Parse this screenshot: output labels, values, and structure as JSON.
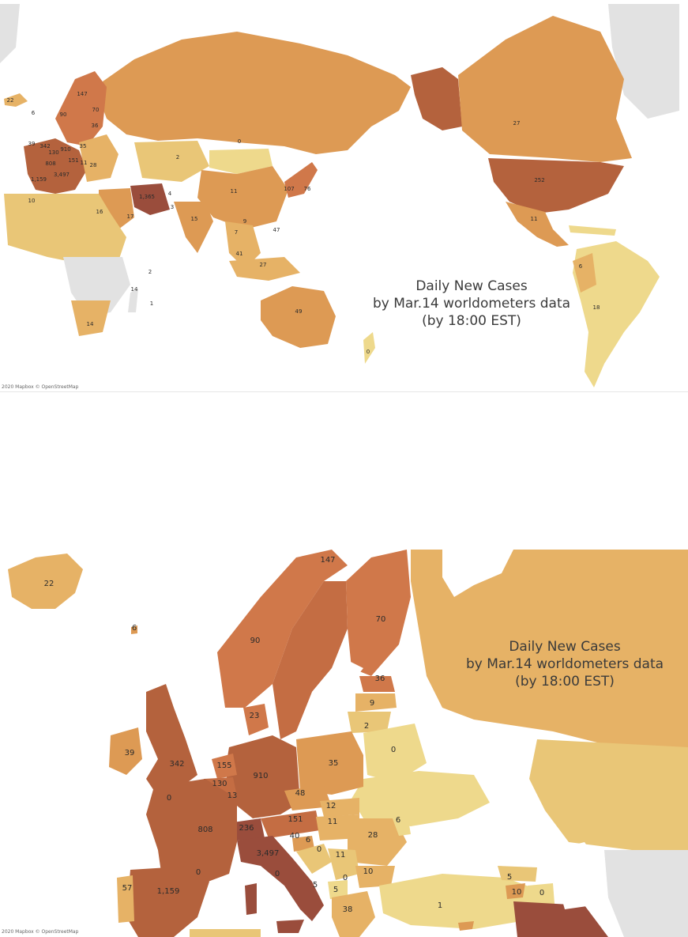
{
  "world_map": {
    "title_lines": [
      "Daily New Cases",
      "by Mar.14 worldometers data",
      "(by 18:00 EST)"
    ],
    "attribution": "2020 Mapbox © OpenStreetMap"
  },
  "europe_map": {
    "title_lines": [
      "Daily New Cases",
      "by Mar.14 worldometers data",
      "(by 18:00 EST)"
    ],
    "attribution": "2020 Mapbox © OpenStreetMap"
  },
  "colors": {
    "no_data": "#e2e2e2",
    "lowest": "#eed98c",
    "low": "#e9c677",
    "mid_low": "#e6b266",
    "mid": "#dd9a54",
    "high": "#d0784a",
    "very_high": "#b4623d",
    "highest": "#9a4d3c",
    "ocean": "#ffffff"
  },
  "world_labels": [
    {
      "text": "22"
    },
    {
      "text": "6"
    },
    {
      "text": "147"
    },
    {
      "text": "70"
    },
    {
      "text": "90"
    },
    {
      "text": "36"
    },
    {
      "text": "35"
    },
    {
      "text": "910"
    },
    {
      "text": "342"
    },
    {
      "text": "39"
    },
    {
      "text": "130"
    },
    {
      "text": "808"
    },
    {
      "text": "151"
    },
    {
      "text": "11"
    },
    {
      "text": "28"
    },
    {
      "text": "1,159"
    },
    {
      "text": "3,497"
    },
    {
      "text": "10"
    },
    {
      "text": "16"
    },
    {
      "text": "14"
    },
    {
      "text": "2"
    },
    {
      "text": "0"
    },
    {
      "text": "1,365"
    },
    {
      "text": "4"
    },
    {
      "text": "3"
    },
    {
      "text": "11"
    },
    {
      "text": "17"
    },
    {
      "text": "15"
    },
    {
      "text": "9"
    },
    {
      "text": "7"
    },
    {
      "text": "107"
    },
    {
      "text": "76"
    },
    {
      "text": "41"
    },
    {
      "text": "27"
    },
    {
      "text": "47"
    },
    {
      "text": "49"
    },
    {
      "text": "252"
    },
    {
      "text": "27"
    },
    {
      "text": "11"
    },
    {
      "text": "6"
    },
    {
      "text": "18"
    },
    {
      "text": "14"
    },
    {
      "text": "1"
    },
    {
      "text": "2"
    },
    {
      "text": "0"
    }
  ],
  "europe_labels": [
    {
      "text": "22"
    },
    {
      "text": "6"
    },
    {
      "text": "147"
    },
    {
      "text": "90"
    },
    {
      "text": "70"
    },
    {
      "text": "36"
    },
    {
      "text": "9"
    },
    {
      "text": "23"
    },
    {
      "text": "2"
    },
    {
      "text": "0"
    },
    {
      "text": "39"
    },
    {
      "text": "342"
    },
    {
      "text": "155"
    },
    {
      "text": "910"
    },
    {
      "text": "35"
    },
    {
      "text": "130"
    },
    {
      "text": "13"
    },
    {
      "text": "48"
    },
    {
      "text": "0"
    },
    {
      "text": "12"
    },
    {
      "text": "151"
    },
    {
      "text": "808"
    },
    {
      "text": "236"
    },
    {
      "text": "11"
    },
    {
      "text": "6"
    },
    {
      "text": "28"
    },
    {
      "text": "40"
    },
    {
      "text": "6"
    },
    {
      "text": "0"
    },
    {
      "text": "3,497"
    },
    {
      "text": "11"
    },
    {
      "text": "10"
    },
    {
      "text": "0"
    },
    {
      "text": "5"
    },
    {
      "text": "0"
    },
    {
      "text": "57"
    },
    {
      "text": "1,159"
    },
    {
      "text": "0"
    },
    {
      "text": "5"
    },
    {
      "text": "38"
    },
    {
      "text": "5"
    },
    {
      "text": "10"
    },
    {
      "text": "0"
    },
    {
      "text": "1"
    }
  ]
}
